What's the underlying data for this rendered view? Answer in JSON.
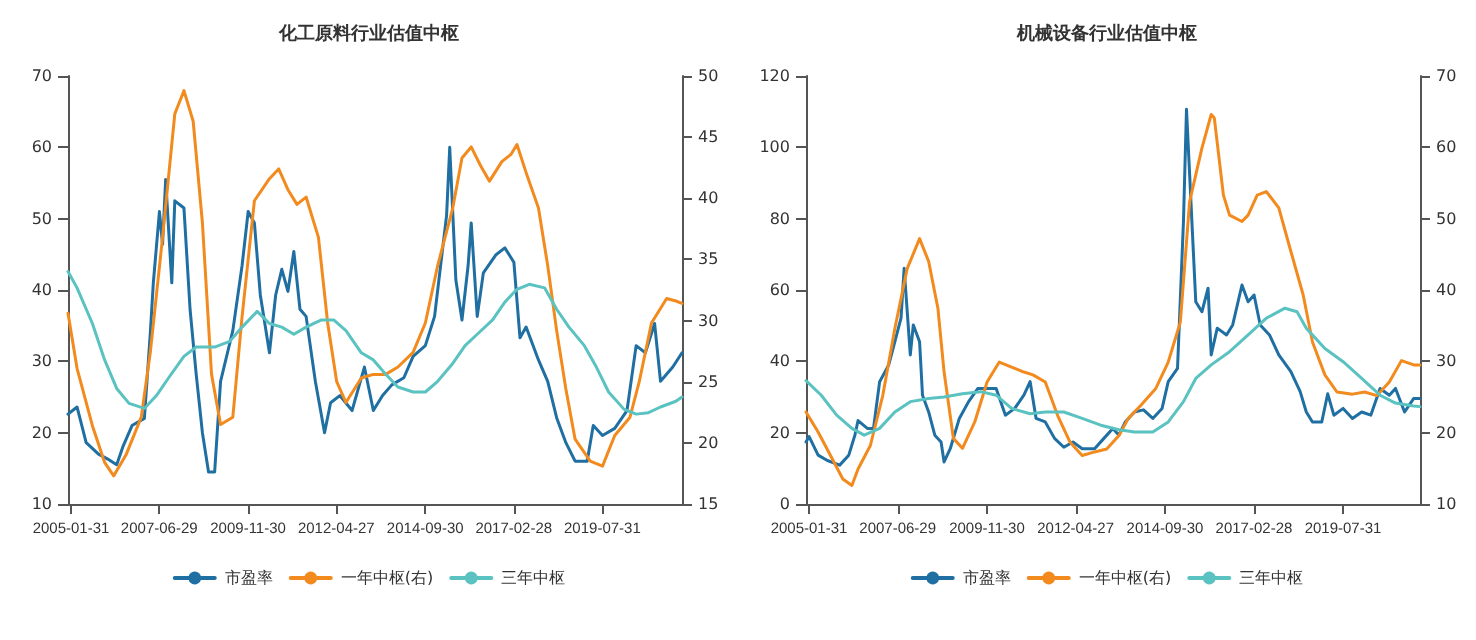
{
  "chart_data": [
    {
      "type": "line",
      "title": "化工原料行业估值中枢",
      "legend": "bottom",
      "grid": false,
      "marker": "none",
      "line_style": "solid",
      "xlim": [
        "2005-01",
        "2021-10"
      ],
      "xticks": [
        "2005-01-31",
        "2007-06-29",
        "2009-11-30",
        "2012-04-27",
        "2014-09-30",
        "2017-02-28",
        "2019-07-31"
      ],
      "ylim": [
        10,
        70
      ],
      "yticks": [
        10,
        20,
        30,
        40,
        50,
        60,
        70
      ],
      "y2lim": [
        15,
        50
      ],
      "y2ticks": [
        15,
        20,
        25,
        30,
        35,
        40,
        45,
        50
      ],
      "series": [
        {
          "name": "市盈率",
          "color": "#1f6fa3",
          "x": [
            "2005-01",
            "2005-04",
            "2005-07",
            "2005-11",
            "2006-02",
            "2006-05",
            "2006-07",
            "2006-10",
            "2007-02",
            "2007-04",
            "2007-05",
            "2007-07",
            "2007-08",
            "2007-09",
            "2007-11",
            "2007-12",
            "2008-03",
            "2008-05",
            "2008-07",
            "2008-09",
            "2008-11",
            "2009-01",
            "2009-03",
            "2009-07",
            "2009-10",
            "2009-12",
            "2010-02",
            "2010-04",
            "2010-07",
            "2010-09",
            "2010-11",
            "2011-01",
            "2011-03",
            "2011-05",
            "2011-07",
            "2011-10",
            "2012-01",
            "2012-03",
            "2012-06",
            "2012-10",
            "2013-02",
            "2013-05",
            "2013-08",
            "2013-11",
            "2014-03",
            "2014-06",
            "2014-10",
            "2015-01",
            "2015-05",
            "2015-06",
            "2015-08",
            "2015-10",
            "2015-12",
            "2016-01",
            "2016-03",
            "2016-05",
            "2016-09",
            "2016-12",
            "2017-03",
            "2017-05",
            "2017-07",
            "2017-11",
            "2018-02",
            "2018-05",
            "2018-08",
            "2018-11",
            "2019-03",
            "2019-05",
            "2019-08",
            "2019-12",
            "2020-04",
            "2020-07",
            "2020-10",
            "2021-01",
            "2021-03",
            "2021-07",
            "2021-10"
          ],
          "values": [
            22.6,
            23.6,
            18.6,
            17,
            16.3,
            15.5,
            18,
            21,
            22,
            34,
            41,
            51,
            46.4,
            55.5,
            41,
            52.5,
            51.5,
            37.3,
            28.2,
            20,
            14.5,
            14.5,
            27.2,
            34.3,
            43.4,
            51,
            49.4,
            39.3,
            31.2,
            39.3,
            42.9,
            39.8,
            45.4,
            37.3,
            36.3,
            27.2,
            20,
            24.2,
            25.2,
            23.1,
            29.2,
            23.1,
            25.2,
            26.7,
            27.7,
            30.7,
            32.2,
            36.3,
            50.5,
            60,
            41.4,
            35.8,
            43.4,
            49.4,
            36.3,
            42.4,
            44.9,
            45.9,
            43.9,
            33.3,
            34.8,
            30.2,
            27.2,
            22.1,
            18.6,
            16,
            16,
            21,
            19.6,
            20.6,
            23.1,
            32.2,
            31.2,
            35.3,
            27.2,
            29.2,
            31.2
          ]
        },
        {
          "name": "一年中枢(右)",
          "color": "#f28a1e",
          "axis": "y2",
          "x": [
            "2005-01",
            "2005-04",
            "2005-09",
            "2006-01",
            "2006-04",
            "2006-08",
            "2007-01",
            "2007-04",
            "2007-08",
            "2007-12",
            "2008-03",
            "2008-06",
            "2008-09",
            "2008-12",
            "2009-03",
            "2009-07",
            "2009-10",
            "2010-02",
            "2010-07",
            "2010-10",
            "2011-01",
            "2011-04",
            "2011-07",
            "2011-11",
            "2012-02",
            "2012-05",
            "2012-08",
            "2013-01",
            "2013-05",
            "2013-09",
            "2014-01",
            "2014-06",
            "2014-10",
            "2015-02",
            "2015-07",
            "2015-10",
            "2016-01",
            "2016-04",
            "2016-07",
            "2016-11",
            "2017-02",
            "2017-04",
            "2017-07",
            "2017-11",
            "2018-02",
            "2018-05",
            "2018-08",
            "2018-11",
            "2019-04",
            "2019-08",
            "2019-12",
            "2020-05",
            "2020-08",
            "2020-12",
            "2021-05",
            "2021-08",
            "2021-10"
          ],
          "values": [
            30.6,
            26.1,
            21.4,
            18.4,
            17.3,
            19,
            22.1,
            27.4,
            36.8,
            46.9,
            48.8,
            46.3,
            38,
            25.6,
            21.5,
            22.1,
            30.3,
            39.8,
            41.6,
            42.4,
            40.7,
            39.5,
            40.1,
            36.8,
            29.8,
            25,
            23.3,
            25.3,
            25.6,
            25.6,
            26.2,
            27.4,
            29.8,
            34.5,
            39.2,
            43.3,
            44.2,
            42.7,
            41.4,
            43,
            43.6,
            44.4,
            42.1,
            39.2,
            34.5,
            29.2,
            24.4,
            20.3,
            18.5,
            18.1,
            20.6,
            22.1,
            25,
            29.8,
            31.8,
            31.6,
            31.4
          ]
        },
        {
          "name": "三年中枢",
          "color": "#5ac2c0",
          "x": [
            "2005-01",
            "2005-04",
            "2005-09",
            "2006-01",
            "2006-05",
            "2006-09",
            "2007-02",
            "2007-06",
            "2007-10",
            "2008-03",
            "2008-07",
            "2009-01",
            "2009-06",
            "2009-10",
            "2010-03",
            "2010-07",
            "2010-11",
            "2011-03",
            "2011-07",
            "2011-12",
            "2012-04",
            "2012-08",
            "2013-01",
            "2013-05",
            "2013-09",
            "2014-01",
            "2014-06",
            "2014-10",
            "2015-02",
            "2015-07",
            "2015-11",
            "2016-03",
            "2016-08",
            "2016-12",
            "2017-04",
            "2017-08",
            "2018-01",
            "2018-05",
            "2018-09",
            "2019-02",
            "2019-06",
            "2019-10",
            "2020-03",
            "2020-07",
            "2020-11",
            "2021-03",
            "2021-08",
            "2021-10"
          ],
          "values": [
            42.6,
            40.3,
            35.3,
            30.2,
            26.2,
            24.1,
            23.4,
            25.2,
            27.7,
            30.7,
            32,
            32,
            32.8,
            34.8,
            37,
            35.3,
            34.8,
            33.8,
            34.8,
            35.8,
            35.8,
            34.3,
            31.2,
            30.2,
            28.2,
            26.4,
            25.7,
            25.7,
            27.2,
            29.7,
            32.2,
            33.8,
            35.8,
            38.3,
            40.1,
            40.8,
            40.3,
            37.3,
            34.8,
            32.2,
            29.2,
            25.7,
            23.3,
            22.6,
            22.8,
            23.6,
            24.4,
            25
          ]
        }
      ]
    },
    {
      "type": "line",
      "title": "机械设备行业估值中枢",
      "legend": "bottom",
      "grid": false,
      "marker": "none",
      "line_style": "solid",
      "xlim": [
        "2005-01",
        "2021-09"
      ],
      "xticks": [
        "2005-01-31",
        "2007-06-29",
        "2009-11-30",
        "2012-04-27",
        "2014-09-30",
        "2017-02-28",
        "2019-07-31"
      ],
      "ylim": [
        0,
        120
      ],
      "yticks": [
        0,
        20,
        40,
        60,
        80,
        100,
        120
      ],
      "y2lim": [
        10,
        70
      ],
      "y2ticks": [
        10,
        20,
        30,
        40,
        50,
        60,
        70
      ],
      "series": [
        {
          "name": "市盈率",
          "color": "#1f6fa3",
          "x": [
            "2005-01",
            "2005-02",
            "2005-05",
            "2005-08",
            "2005-12",
            "2006-03",
            "2006-05",
            "2006-06",
            "2006-09",
            "2006-11",
            "2007-01",
            "2007-04",
            "2007-06",
            "2007-08",
            "2007-09",
            "2007-11",
            "2007-12",
            "2008-02",
            "2008-03",
            "2008-05",
            "2008-07",
            "2008-09",
            "2008-10",
            "2008-12",
            "2009-03",
            "2009-06",
            "2009-09",
            "2009-12",
            "2010-03",
            "2010-06",
            "2010-09",
            "2010-12",
            "2011-02",
            "2011-04",
            "2011-07",
            "2011-10",
            "2012-01",
            "2012-04",
            "2012-07",
            "2012-11",
            "2013-02",
            "2013-05",
            "2013-07",
            "2013-09",
            "2013-12",
            "2014-03",
            "2014-06",
            "2014-09",
            "2014-11",
            "2015-02",
            "2015-04",
            "2015-05",
            "2015-08",
            "2015-10",
            "2015-12",
            "2016-01",
            "2016-03",
            "2016-06",
            "2016-08",
            "2016-11",
            "2017-01",
            "2017-03",
            "2017-05",
            "2017-08",
            "2017-11",
            "2018-03",
            "2018-06",
            "2018-08",
            "2018-10",
            "2019-01",
            "2019-03",
            "2019-05",
            "2019-08",
            "2019-11",
            "2020-02",
            "2020-05",
            "2020-08",
            "2020-11",
            "2021-01",
            "2021-04",
            "2021-07",
            "2021-09"
          ],
          "values": [
            17.4,
            18.9,
            13.7,
            12.2,
            10.9,
            13.7,
            19.3,
            23.4,
            21.2,
            21.2,
            34.3,
            39,
            45.5,
            52.1,
            66.1,
            41.8,
            50.2,
            45.5,
            30.5,
            25.8,
            19.3,
            17.4,
            11.8,
            15.5,
            24,
            28.7,
            32.4,
            32.4,
            32.4,
            24.9,
            26.8,
            30.5,
            34.3,
            24,
            23,
            18.4,
            15.9,
            17.4,
            15.5,
            15.5,
            18.4,
            21.2,
            19.3,
            23,
            25.8,
            26.4,
            24,
            26.8,
            34.3,
            38,
            79.2,
            110.7,
            56.7,
            53.9,
            60.5,
            41.8,
            49.3,
            47.4,
            50.2,
            61.4,
            56.7,
            58.6,
            50.2,
            47.4,
            41.8,
            37.1,
            31.5,
            25.8,
            23,
            23,
            30.9,
            24.9,
            26.8,
            24,
            25.8,
            24.9,
            32.4,
            30.5,
            32.4,
            25.8,
            29.6,
            29.6
          ]
        },
        {
          "name": "一年中枢(右)",
          "color": "#f28a1e",
          "axis": "y2",
          "x": [
            "2005-01",
            "2005-05",
            "2005-09",
            "2006-01",
            "2006-04",
            "2006-06",
            "2006-10",
            "2007-02",
            "2007-06",
            "2007-10",
            "2008-02",
            "2008-05",
            "2008-08",
            "2008-10",
            "2009-01",
            "2009-04",
            "2009-08",
            "2009-12",
            "2010-04",
            "2010-08",
            "2010-12",
            "2011-03",
            "2011-07",
            "2011-11",
            "2012-03",
            "2012-07",
            "2012-11",
            "2013-03",
            "2013-07",
            "2013-10",
            "2014-02",
            "2014-07",
            "2014-11",
            "2015-03",
            "2015-06",
            "2015-10",
            "2016-01",
            "2016-02",
            "2016-05",
            "2016-07",
            "2016-11",
            "2017-01",
            "2017-04",
            "2017-07",
            "2017-11",
            "2018-03",
            "2018-07",
            "2018-10",
            "2019-02",
            "2019-06",
            "2019-11",
            "2020-03",
            "2020-07",
            "2020-11",
            "2021-03",
            "2021-07",
            "2021-09"
          ],
          "values": [
            22.9,
            20.1,
            16.8,
            13.5,
            12.6,
            14.9,
            18.2,
            25.2,
            34.6,
            43,
            47.2,
            44,
            37.4,
            28.5,
            19.2,
            17.8,
            21.5,
            27.1,
            29.9,
            29.2,
            28.5,
            28.1,
            27.1,
            22.4,
            18.7,
            16.8,
            17.3,
            17.7,
            19.6,
            22,
            23.8,
            26.2,
            29.9,
            35.5,
            52.4,
            59.9,
            64.6,
            64.1,
            53.3,
            50.5,
            49.6,
            50.5,
            53.3,
            53.8,
            51.5,
            45.4,
            39.3,
            32.7,
            28.1,
            25.7,
            25.4,
            25.7,
            25.2,
            27.1,
            30.1,
            29.5,
            29.5
          ]
        },
        {
          "name": "三年中枢",
          "color": "#5ac2c0",
          "x": [
            "2005-01",
            "2005-06",
            "2005-11",
            "2006-04",
            "2006-08",
            "2007-01",
            "2007-06",
            "2007-11",
            "2008-05",
            "2008-10",
            "2009-04",
            "2009-10",
            "2010-03",
            "2010-08",
            "2011-02",
            "2011-07",
            "2012-01",
            "2012-07",
            "2013-01",
            "2013-07",
            "2013-12",
            "2014-06",
            "2014-11",
            "2015-04",
            "2015-08",
            "2016-01",
            "2016-07",
            "2017-01",
            "2017-07",
            "2018-01",
            "2018-05",
            "2018-08",
            "2019-02",
            "2019-08",
            "2020-02",
            "2020-08",
            "2021-01",
            "2021-07",
            "2021-09"
          ],
          "values": [
            34.6,
            30.5,
            24.9,
            21.2,
            19.3,
            21.2,
            25.8,
            28.7,
            29.6,
            30,
            30.9,
            31.5,
            30.5,
            26.8,
            25.3,
            25.8,
            25.8,
            24,
            22.1,
            20.8,
            20.2,
            20.2,
            23,
            28.7,
            35.2,
            39,
            42.7,
            47.4,
            52.1,
            54.9,
            53.9,
            49.3,
            43.6,
            39.9,
            35.2,
            30.5,
            28.3,
            27.5,
            27.3
          ]
        }
      ]
    }
  ]
}
